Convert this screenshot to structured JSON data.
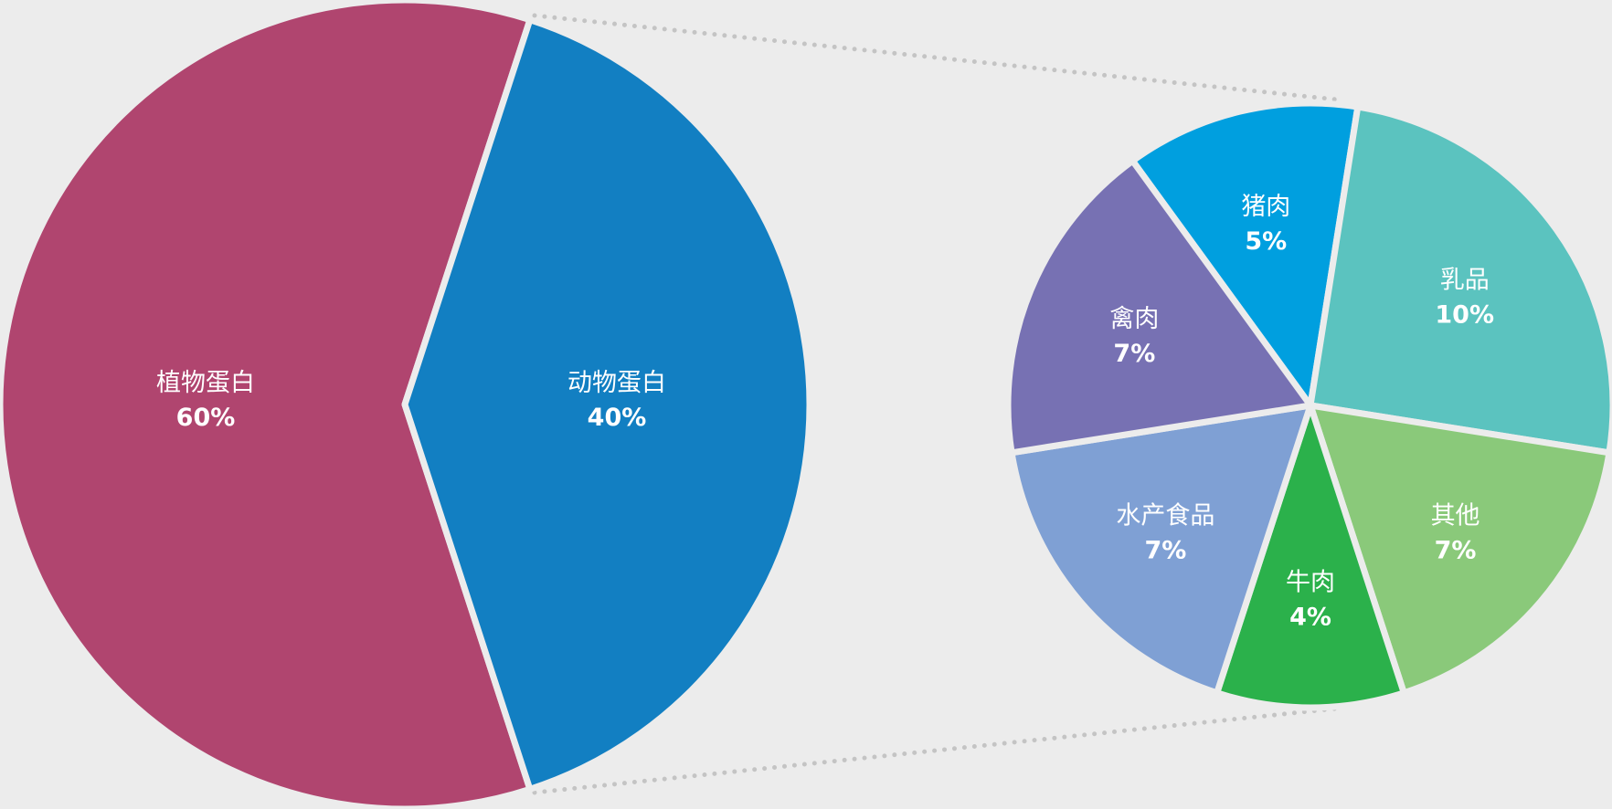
{
  "chart_data": {
    "type": "pie",
    "subtype": "pie-of-pie",
    "title": "",
    "background": "#ececec",
    "main_pie": {
      "slices": [
        {
          "label": "植物蛋白",
          "value": 60,
          "value_label": "60%",
          "color": "#b0456f"
        },
        {
          "label": "动物蛋白",
          "value": 40,
          "value_label": "40%",
          "color": "#127fc2",
          "exploded_into_secondary": true
        }
      ]
    },
    "secondary_pie": {
      "slices": [
        {
          "label": "猪肉",
          "value": 5,
          "value_label": "5%",
          "color": "#009fdf"
        },
        {
          "label": "乳品",
          "value": 10,
          "value_label": "10%",
          "color": "#5bc3bf"
        },
        {
          "label": "其他",
          "value": 7,
          "value_label": "7%",
          "color": "#8ac97a"
        },
        {
          "label": "牛肉",
          "value": 4,
          "value_label": "4%",
          "color": "#2bb14b"
        },
        {
          "label": "水产食品",
          "value": 7,
          "value_label": "7%",
          "color": "#7fa0d4"
        },
        {
          "label": "禽肉",
          "value": 7,
          "value_label": "7%",
          "color": "#7771b3"
        }
      ]
    },
    "connector_color": "#c4c4c4"
  }
}
